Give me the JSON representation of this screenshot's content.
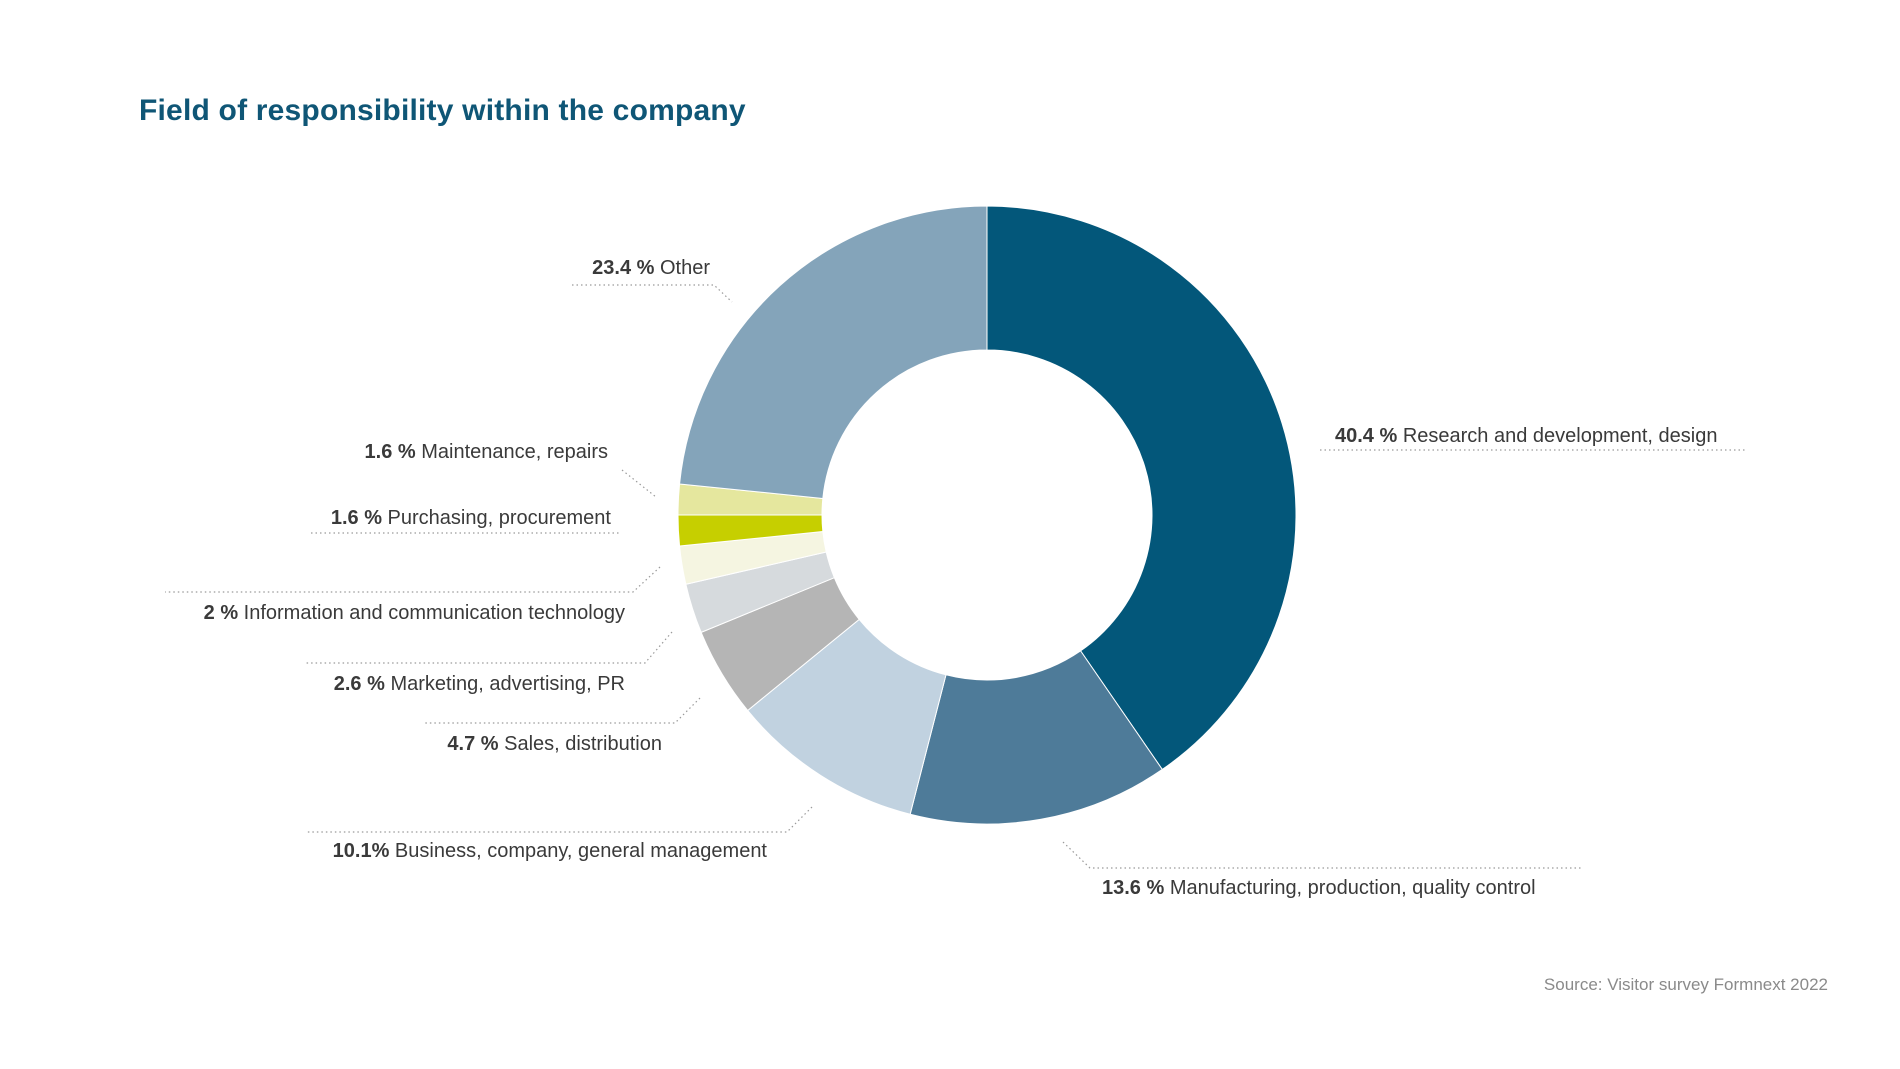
{
  "title": "Field of responsibility within the company",
  "source": "Source: Visitor survey Formnext 2022",
  "chart_data": {
    "type": "pie",
    "donut": true,
    "title": "Field of responsibility within the company",
    "slices": [
      {
        "label": "Research and development, design",
        "value": 40.4,
        "value_text": "40.4 %",
        "color": "#03577a"
      },
      {
        "label": "Manufacturing, production, quality control",
        "value": 13.6,
        "value_text": "13.6 %",
        "color": "#4e7b99"
      },
      {
        "label": "Business, company, general management",
        "value": 10.1,
        "value_text": "10.1%",
        "color": "#c1d2e0"
      },
      {
        "label": "Sales, distribution",
        "value": 4.7,
        "value_text": "4.7 %",
        "color": "#b5b5b5"
      },
      {
        "label": "Marketing, advertising, PR",
        "value": 2.6,
        "value_text": "2.6 %",
        "color": "#d6dadd"
      },
      {
        "label": "Information and communication technology",
        "value": 2,
        "value_text": "2 %",
        "color": "#f5f5e1"
      },
      {
        "label": "Purchasing, procurement",
        "value": 1.6,
        "value_text": "1.6 %",
        "color": "#c6cf00"
      },
      {
        "label": "Maintenance, repairs",
        "value": 1.6,
        "value_text": "1.6 %",
        "color": "#e5e79e"
      },
      {
        "label": "Other",
        "value": 23.4,
        "value_text": "23.4 %",
        "color": "#84a4ba"
      }
    ]
  }
}
